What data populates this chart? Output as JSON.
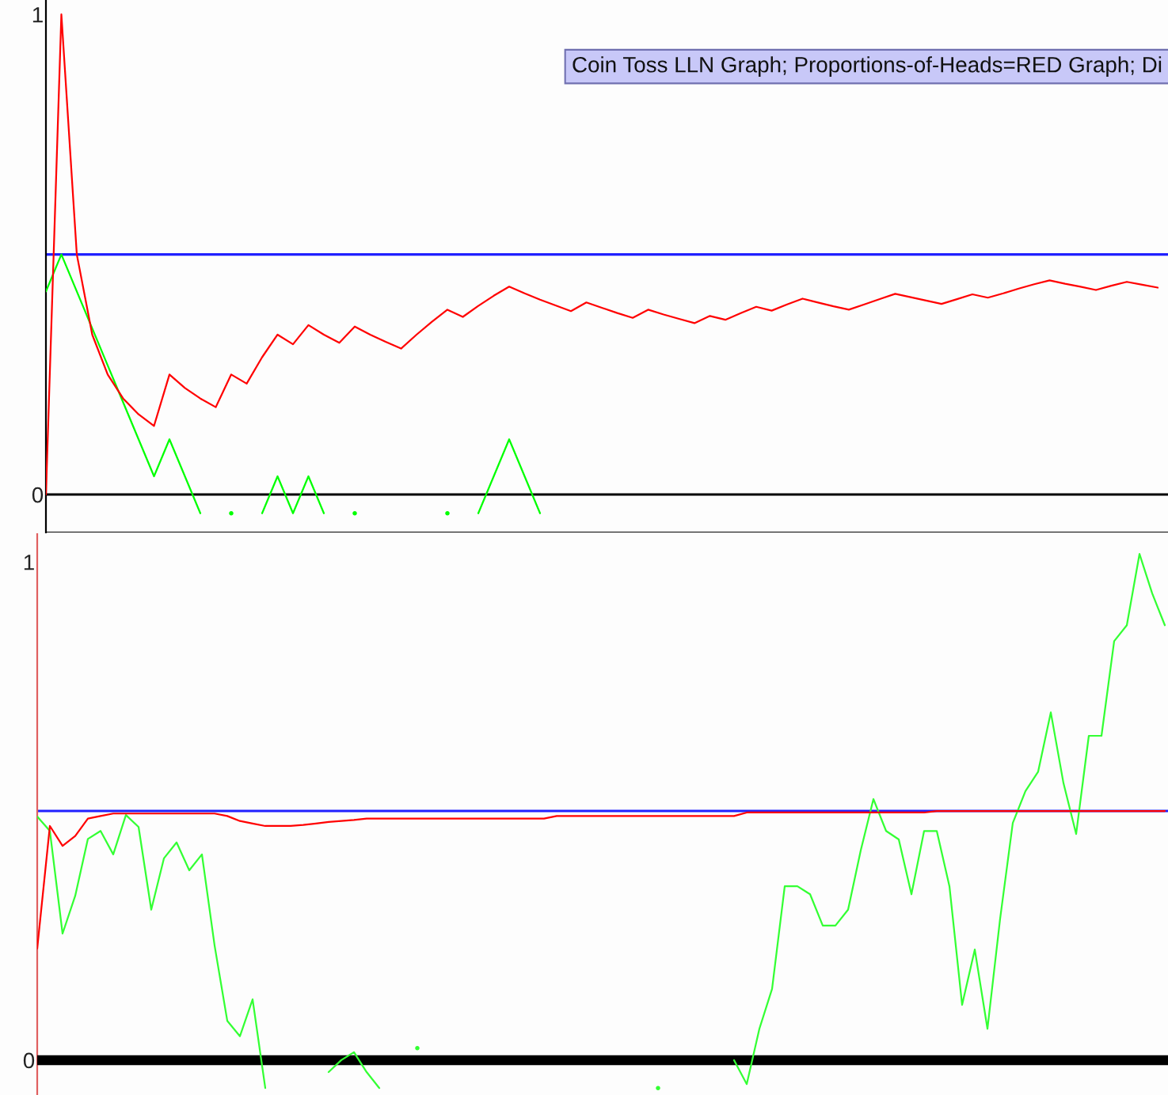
{
  "chart_data": [
    {
      "type": "line",
      "title": "Coin Toss LLN Graph; Proportions-of-Heads=RED Graph; Di",
      "categories": [
        null,
        null,
        null,
        null,
        null,
        null,
        null,
        null,
        null,
        null,
        null,
        null,
        null,
        null,
        null,
        null,
        null,
        null,
        null,
        null,
        null,
        null,
        null,
        null,
        null,
        null,
        null,
        null,
        null,
        null,
        null,
        null,
        null,
        null,
        null,
        null,
        null,
        null,
        null,
        null,
        null,
        null,
        null,
        null,
        null,
        null,
        null,
        null,
        null,
        null,
        null,
        null,
        null,
        null,
        null,
        null,
        null,
        null,
        null,
        null,
        null,
        null,
        null,
        null,
        null,
        null,
        null,
        null,
        null,
        null,
        null,
        null,
        null
      ],
      "series": [
        {
          "color": "#00ff00",
          "values": [
            0.423,
            0.5,
            0.423,
            0.346,
            0.269,
            0.192,
            0.115,
            0.038,
            0.115,
            0.038,
            -0.039,
            null,
            -0.039,
            null,
            -0.039,
            0.038,
            -0.039,
            0.038,
            -0.039,
            null,
            -0.039,
            null,
            null,
            null,
            null,
            null,
            -0.039,
            null,
            -0.039,
            0.038,
            0.115,
            0.038,
            -0.039,
            null,
            null,
            null,
            null,
            null,
            null,
            null,
            null,
            null,
            null,
            null,
            null,
            null,
            null,
            null,
            null,
            null,
            null,
            null,
            null,
            null,
            null,
            null,
            null,
            null,
            null,
            null,
            null,
            null,
            null,
            null,
            null,
            null,
            null,
            null,
            null,
            null,
            null,
            null,
            null
          ]
        },
        {
          "color": "#ff0000",
          "values": [
            0,
            1,
            0.5,
            0.333,
            0.25,
            0.2,
            0.167,
            0.143,
            0.25,
            0.222,
            0.2,
            0.182,
            0.25,
            0.231,
            0.286,
            0.333,
            0.313,
            0.353,
            0.333,
            0.316,
            0.35,
            0.333,
            0.318,
            0.304,
            0.333,
            0.36,
            0.385,
            0.37,
            0.393,
            0.414,
            0.433,
            0.419,
            0.406,
            0.394,
            0.382,
            0.4,
            0.389,
            0.378,
            0.368,
            0.385,
            0.375,
            0.366,
            0.357,
            0.372,
            0.364,
            0.378,
            0.391,
            0.383,
            0.396,
            0.408,
            0.4,
            0.392,
            0.385,
            0.396,
            0.407,
            0.418,
            0.411,
            0.404,
            0.397,
            0.407,
            0.417,
            0.41,
            0.419,
            0.429,
            0.438,
            0.446,
            0.439,
            0.433,
            0.426,
            0.435,
            0.443,
            0.437,
            0.431
          ]
        }
      ],
      "ylim": [
        -0.079,
        1.03
      ],
      "yticks": [
        0,
        1
      ],
      "ref_lines": [
        {
          "axis": "y",
          "value": 0.5,
          "color": "#2020ff"
        }
      ],
      "tick_labels": "y"
    },
    {
      "type": "line",
      "categories": [
        null,
        null,
        null,
        null,
        null,
        null,
        null,
        null,
        null,
        null,
        null,
        null,
        null,
        null,
        null,
        null,
        null,
        null,
        null,
        null,
        null,
        null,
        null,
        null,
        null,
        null,
        null,
        null,
        null,
        null,
        null,
        null,
        null,
        null,
        null,
        null,
        null,
        null,
        null,
        null,
        null,
        null,
        null,
        null,
        null,
        null,
        null,
        null,
        null,
        null,
        null,
        null,
        null,
        null,
        null,
        null,
        null,
        null,
        null,
        null,
        null,
        null,
        null,
        null,
        null,
        null,
        null,
        null,
        null,
        null,
        null,
        null,
        null,
        null,
        null,
        null,
        null,
        null,
        null,
        null,
        null,
        null,
        null,
        null,
        null,
        null,
        null,
        null,
        null,
        null
      ],
      "series": [
        {
          "color": "#33ff33",
          "values": [
            0.489,
            0.46,
            0.254,
            0.33,
            0.444,
            0.46,
            0.413,
            0.492,
            0.468,
            0.302,
            0.405,
            0.437,
            0.381,
            0.413,
            0.23,
            0.079,
            0.048,
            0.122,
            -0.056,
            null,
            null,
            null,
            null,
            -0.024,
            0,
            0.016,
            -0.024,
            -0.056,
            null,
            null,
            0.024,
            null,
            null,
            null,
            null,
            null,
            null,
            null,
            null,
            null,
            null,
            null,
            null,
            null,
            null,
            null,
            null,
            null,
            null,
            -0.056,
            null,
            null,
            null,
            null,
            null,
            0,
            -0.048,
            0.063,
            0.143,
            0.349,
            0.349,
            0.333,
            0.27,
            0.27,
            0.302,
            0.421,
            0.524,
            0.46,
            0.443,
            0.333,
            0.46,
            0.46,
            0.349,
            0.111,
            0.222,
            0.063,
            0.284,
            0.476,
            0.54,
            0.579,
            0.698,
            0.556,
            0.454,
            0.651,
            0.651,
            0.841,
            0.873,
            1.016,
            0.937,
            0.873
          ]
        },
        {
          "color": "#ff0000",
          "values": [
            0.224,
            0.47,
            0.43,
            0.45,
            0.485,
            0.49,
            0.495,
            0.495,
            0.495,
            0.495,
            0.495,
            0.495,
            0.495,
            0.495,
            0.495,
            0.49,
            0.48,
            0.475,
            0.47,
            0.47,
            0.47,
            0.472,
            0.475,
            0.478,
            0.48,
            0.482,
            0.485,
            0.485,
            0.485,
            0.485,
            0.485,
            0.485,
            0.485,
            0.485,
            0.485,
            0.485,
            0.485,
            0.485,
            0.485,
            0.485,
            0.485,
            0.49,
            0.49,
            0.49,
            0.49,
            0.49,
            0.49,
            0.49,
            0.49,
            0.49,
            0.49,
            0.49,
            0.49,
            0.49,
            0.49,
            0.49,
            0.497,
            0.497,
            0.497,
            0.497,
            0.497,
            0.497,
            0.497,
            0.497,
            0.497,
            0.497,
            0.497,
            0.497,
            0.497,
            0.497,
            0.497,
            0.5,
            0.5,
            0.5,
            0.5,
            0.5,
            0.5,
            0.5,
            0.5,
            0.5,
            0.5,
            0.5,
            0.5,
            0.5,
            0.5,
            0.5,
            0.5,
            0.5,
            0.5,
            0.5
          ]
        }
      ],
      "ylim": [
        -0.07,
        1.056
      ],
      "yticks": [
        0,
        1
      ],
      "ref_lines": [
        {
          "axis": "y",
          "value": 0.5,
          "color": "#2020ff"
        }
      ],
      "tick_labels": "y"
    }
  ]
}
